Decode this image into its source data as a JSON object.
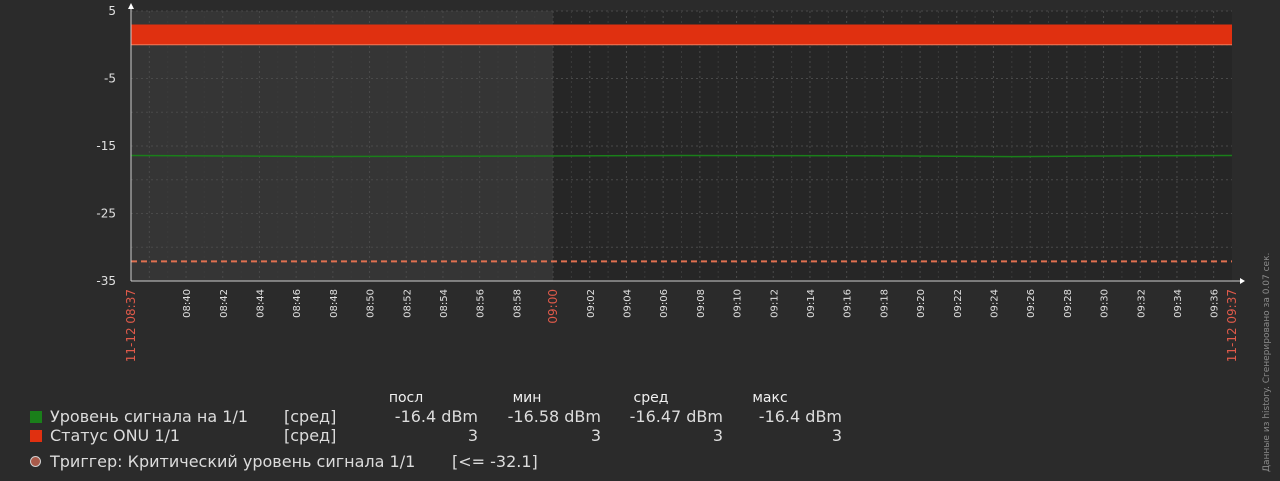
{
  "chart_data": {
    "type": "line",
    "ylim": [
      -35,
      5
    ],
    "yticks": [
      "5",
      "-5",
      "-15",
      "-25",
      "-35"
    ],
    "yticks_values": [
      5,
      -5,
      -15,
      -25,
      -35
    ],
    "x_start_label": "11-12 08:37",
    "x_end_label": "11-12 09:37",
    "x_major_label": "09:00",
    "xticks": [
      "08:40",
      "08:42",
      "08:44",
      "08:46",
      "08:48",
      "08:50",
      "08:52",
      "08:54",
      "08:56",
      "08:58",
      "09:02",
      "09:04",
      "09:06",
      "09:08",
      "09:10",
      "09:12",
      "09:14",
      "09:16",
      "09:18",
      "09:20",
      "09:22",
      "09:24",
      "09:26",
      "09:28",
      "09:30",
      "09:32",
      "09:34",
      "09:36"
    ],
    "x_minutes_range": [
      0,
      60
    ],
    "series": [
      {
        "name": "Уровень сигнала на 1/1",
        "color": "#1a7f1a",
        "x_minutes": [
          0,
          10,
          20,
          30,
          40,
          48,
          55,
          60
        ],
        "values": [
          -16.4,
          -16.55,
          -16.5,
          -16.4,
          -16.45,
          -16.58,
          -16.45,
          -16.4
        ]
      },
      {
        "name": "Статус ONU 1/1",
        "color": "#e03010",
        "x_minutes": [
          0,
          60
        ],
        "values": [
          3,
          3
        ]
      }
    ],
    "trigger": {
      "value": -32.1,
      "color": "#e07050"
    }
  },
  "legend": {
    "headers": {
      "last": "посл",
      "min": "мин",
      "avg": "сред",
      "max": "макс"
    },
    "items": [
      {
        "name": "Уровень сигнала на 1/1",
        "agg": "[сред]",
        "last": "-16.4 dBm",
        "min": "-16.58 dBm",
        "avg": "-16.47 dBm",
        "max": "-16.4 dBm",
        "color": "#1a7f1a"
      },
      {
        "name": "Статус ONU 1/1",
        "agg": "[сред]",
        "last": "3",
        "min": "3",
        "avg": "3",
        "max": "3",
        "color": "#e03010"
      }
    ],
    "trigger": {
      "name": "Триггер: Критический уровень сигнала 1/1",
      "value": "[<= -32.1]"
    }
  },
  "side_note": "Данные из history. Сгенерировано за 0.07 сек."
}
